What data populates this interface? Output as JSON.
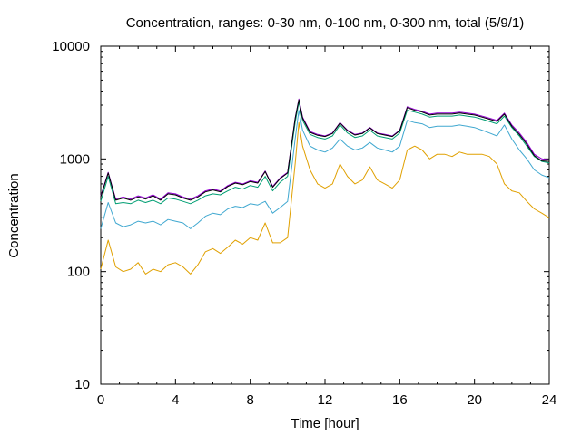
{
  "chart_data": {
    "type": "line",
    "title": "Concentration, ranges: 0-30 nm, 0-100 nm, 0-300 nm, total (5/9/1)",
    "xlabel": "Time [hour]",
    "ylabel": "Concentration",
    "xlim": [
      0,
      24
    ],
    "ylim": [
      10,
      10000
    ],
    "yscale": "log",
    "grid": false,
    "legend": "none",
    "x_ticks": [
      "0",
      "4",
      "8",
      "12",
      "16",
      "20",
      "24"
    ],
    "y_ticks": [
      "10",
      "100",
      "1000",
      "10000"
    ],
    "x": [
      0,
      0.4,
      0.8,
      1.2,
      1.6,
      2.0,
      2.4,
      2.8,
      3.2,
      3.6,
      4.0,
      4.4,
      4.8,
      5.2,
      5.6,
      6.0,
      6.4,
      6.8,
      7.2,
      7.6,
      8.0,
      8.4,
      8.8,
      9.2,
      9.6,
      10.0,
      10.4,
      10.6,
      10.8,
      11.2,
      11.6,
      12.0,
      12.4,
      12.8,
      13.2,
      13.6,
      14.0,
      14.4,
      14.8,
      15.2,
      15.6,
      16.0,
      16.4,
      16.8,
      17.2,
      17.6,
      18.0,
      18.4,
      18.8,
      19.2,
      19.6,
      20.0,
      20.4,
      20.8,
      21.2,
      21.6,
      22.0,
      22.4,
      22.8,
      23.2,
      23.6,
      24.0
    ],
    "series": [
      {
        "color": "#e0a000",
        "values": [
          105,
          190,
          110,
          100,
          105,
          120,
          95,
          105,
          100,
          115,
          120,
          110,
          95,
          115,
          150,
          160,
          145,
          165,
          190,
          175,
          200,
          190,
          270,
          180,
          180,
          200,
          900,
          2100,
          1300,
          800,
          600,
          550,
          600,
          900,
          700,
          600,
          650,
          850,
          650,
          600,
          550,
          650,
          1200,
          1300,
          1200,
          1000,
          1100,
          1100,
          1050,
          1150,
          1100,
          1100,
          1100,
          1050,
          900,
          600,
          520,
          500,
          420,
          360,
          330,
          300
        ]
      },
      {
        "color": "#40a8d0",
        "values": [
          240,
          410,
          270,
          250,
          260,
          280,
          270,
          280,
          260,
          290,
          280,
          270,
          240,
          270,
          310,
          330,
          320,
          360,
          380,
          370,
          400,
          390,
          420,
          330,
          370,
          420,
          1500,
          2700,
          1800,
          1300,
          1200,
          1150,
          1250,
          1500,
          1300,
          1200,
          1250,
          1400,
          1250,
          1200,
          1150,
          1300,
          2200,
          2100,
          2050,
          1900,
          1950,
          1950,
          1950,
          2000,
          1950,
          1900,
          1800,
          1700,
          1600,
          2000,
          1500,
          1200,
          1000,
          800,
          720,
          680
        ]
      },
      {
        "color": "#009e73",
        "values": [
          420,
          700,
          400,
          410,
          400,
          430,
          410,
          430,
          400,
          450,
          440,
          420,
          400,
          430,
          470,
          490,
          480,
          520,
          560,
          540,
          580,
          560,
          700,
          520,
          620,
          700,
          2100,
          3200,
          2200,
          1650,
          1550,
          1500,
          1600,
          2000,
          1700,
          1550,
          1600,
          1800,
          1600,
          1550,
          1500,
          1700,
          2700,
          2600,
          2500,
          2350,
          2400,
          2400,
          2400,
          2450,
          2400,
          2350,
          2250,
          2150,
          2050,
          2400,
          1900,
          1600,
          1300,
          1050,
          950,
          920
        ]
      },
      {
        "color": "#9400d3",
        "values": [
          470,
          760,
          440,
          460,
          440,
          470,
          450,
          480,
          440,
          500,
          490,
          460,
          440,
          470,
          520,
          540,
          520,
          580,
          620,
          600,
          640,
          620,
          780,
          570,
          680,
          760,
          2300,
          3400,
          2350,
          1750,
          1650,
          1600,
          1700,
          2100,
          1800,
          1650,
          1700,
          1900,
          1700,
          1650,
          1600,
          1800,
          2900,
          2750,
          2650,
          2500,
          2550,
          2550,
          2550,
          2600,
          2550,
          2500,
          2400,
          2300,
          2200,
          2550,
          2000,
          1700,
          1400,
          1100,
          1000,
          980
        ]
      },
      {
        "color": "#000000",
        "values": [
          460,
          750,
          430,
          450,
          430,
          460,
          440,
          470,
          430,
          490,
          480,
          450,
          430,
          460,
          510,
          530,
          510,
          570,
          610,
          590,
          630,
          610,
          770,
          560,
          670,
          750,
          2280,
          3350,
          2300,
          1720,
          1620,
          1580,
          1680,
          2080,
          1780,
          1630,
          1680,
          1880,
          1680,
          1630,
          1580,
          1780,
          2850,
          2700,
          2600,
          2450,
          2500,
          2500,
          2500,
          2550,
          2500,
          2450,
          2350,
          2250,
          2150,
          2500,
          1950,
          1650,
          1350,
          1070,
          960,
          950
        ]
      }
    ]
  }
}
